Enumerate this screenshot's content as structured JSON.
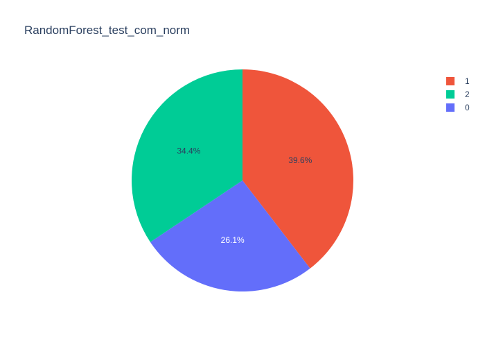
{
  "chart_data": {
    "type": "pie",
    "title": "RandomForest_test_com_norm",
    "slices": [
      {
        "label": "1",
        "value": 39.6,
        "display": "39.6%",
        "color": "#EF553B",
        "text_color": "#2a3f5f"
      },
      {
        "label": "0",
        "value": 26.1,
        "display": "26.1%",
        "color": "#636EFA",
        "text_color": "#ffffff"
      },
      {
        "label": "2",
        "value": 34.4,
        "display": "34.4%",
        "color": "#00CC96",
        "text_color": "#2a3f5f"
      }
    ],
    "legend": {
      "placement": "top-right",
      "items": [
        {
          "label": "1",
          "color": "#EF553B"
        },
        {
          "label": "2",
          "color": "#00CC96"
        },
        {
          "label": "0",
          "color": "#636EFA"
        }
      ]
    }
  }
}
